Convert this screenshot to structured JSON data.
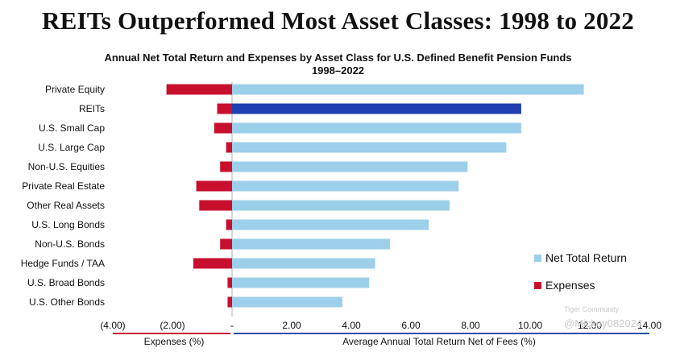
{
  "headline": "REITs Outperformed Most Asset Classes: 1998 to 2022",
  "chart_data": {
    "type": "bar",
    "orientation": "horizontal",
    "title": "Annual Net Total Return and Expenses by Asset Class for U.S. Defined Benefit Pension Funds",
    "subtitle": "1998–2022",
    "categories": [
      "Private Equity",
      "REITs",
      "U.S. Small Cap",
      "U.S. Large Cap",
      "Non-U.S. Equities",
      "Private Real Estate",
      "Other Real Assets",
      "U.S. Long Bonds",
      "Non-U.S. Bonds",
      "Hedge Funds / TAA",
      "U.S. Broad Bonds",
      "U.S. Other Bonds"
    ],
    "series": [
      {
        "name": "Net Total Return",
        "color": "#9ccfe9",
        "highlight_color": "#1f3fb0",
        "highlight_category": "REITs",
        "values": [
          11.8,
          9.7,
          9.7,
          9.2,
          7.9,
          7.6,
          7.3,
          6.6,
          5.3,
          4.8,
          4.6,
          3.7
        ]
      },
      {
        "name": "Expenses",
        "color": "#c8102e",
        "values": [
          -2.2,
          -0.5,
          -0.6,
          -0.2,
          -0.4,
          -1.2,
          -1.1,
          -0.2,
          -0.4,
          -1.3,
          -0.15,
          -0.15
        ]
      }
    ],
    "xlim": [
      -4,
      14
    ],
    "ticks": [
      -4,
      -2,
      0,
      2,
      4,
      6,
      8,
      10,
      12,
      14
    ],
    "tick_labels": [
      "(4.00)",
      "(2.00)",
      "-",
      "2.00",
      "4.00",
      "6.00",
      "8.00",
      "10.00",
      "12.00",
      "14.00"
    ],
    "xlabel_left": "Expenses (%)",
    "xlabel_right": "Average Annual Total Return Net of Fees (%)",
    "legend_position": "right"
  },
  "watermark": {
    "logo": "Tiger Community",
    "user": "@Mickey082024"
  }
}
